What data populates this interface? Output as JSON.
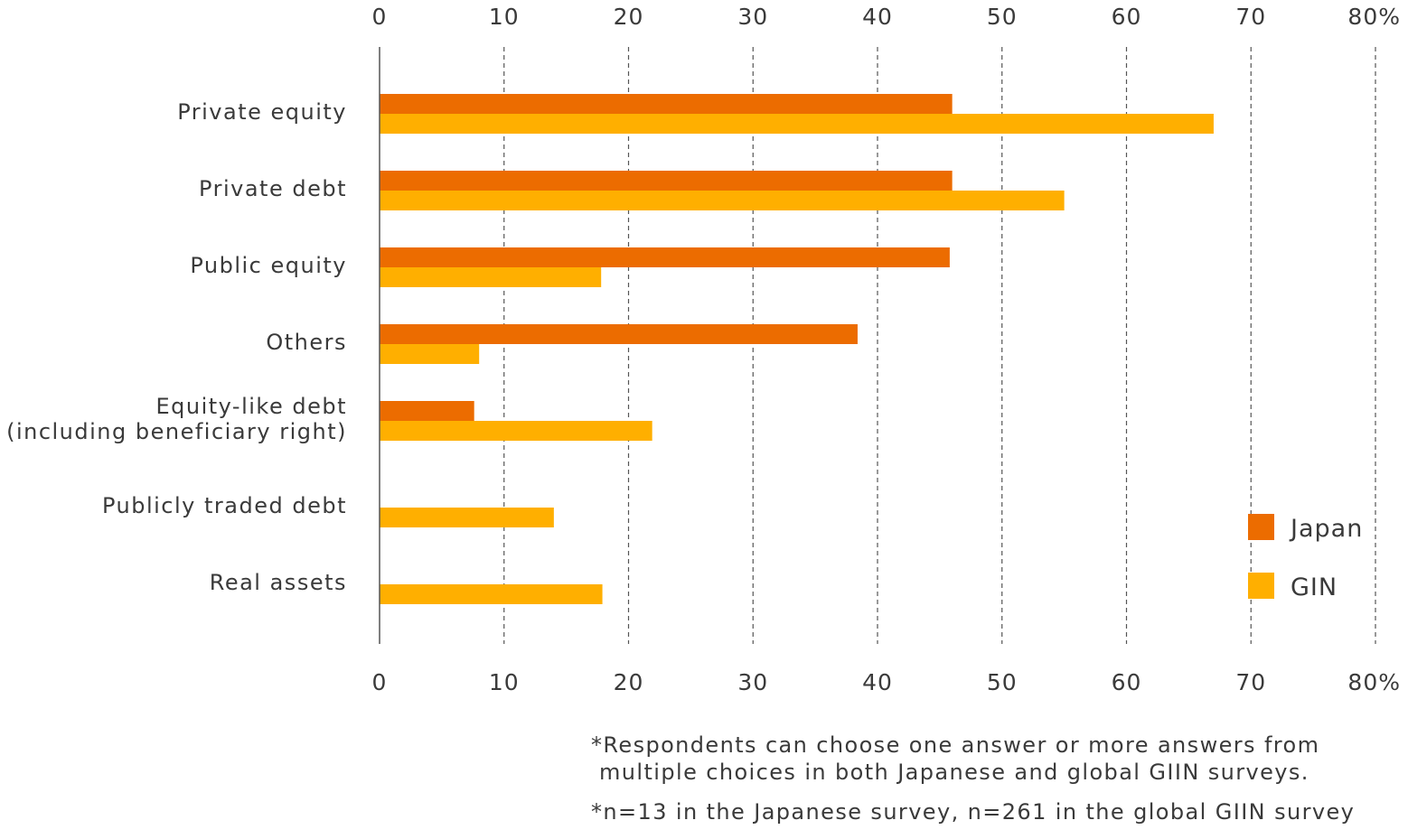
{
  "chart_data": {
    "type": "bar",
    "orientation": "horizontal",
    "categories": [
      [
        "Private equity"
      ],
      [
        "Private debt"
      ],
      [
        "Public equity"
      ],
      [
        "Others"
      ],
      [
        "Equity-like debt",
        "(including beneficiary right)"
      ],
      [
        "Publicly traded debt"
      ],
      [
        "Real assets"
      ]
    ],
    "series": [
      {
        "name": "Japan",
        "color": "#EC6C00",
        "values": [
          46,
          46,
          45.8,
          38.4,
          7.6,
          null,
          null
        ]
      },
      {
        "name": "GIN",
        "color": "#FFAF00",
        "values": [
          67,
          55,
          17.8,
          8,
          21.9,
          14,
          17.9
        ]
      }
    ],
    "xlim": [
      0,
      80
    ],
    "ticks": [
      "0",
      "10",
      "20",
      "30",
      "40",
      "50",
      "60",
      "70",
      "80%"
    ],
    "grid": true,
    "legend_position": "bottom-right",
    "axis_color": "#555555"
  },
  "notes": [
    "*Respondents can choose one answer or more answers from\n multiple choices in both Japanese and global GIIN surveys.",
    "*n=13 in the Japanese survey, n=261 in the global GIIN survey"
  ]
}
